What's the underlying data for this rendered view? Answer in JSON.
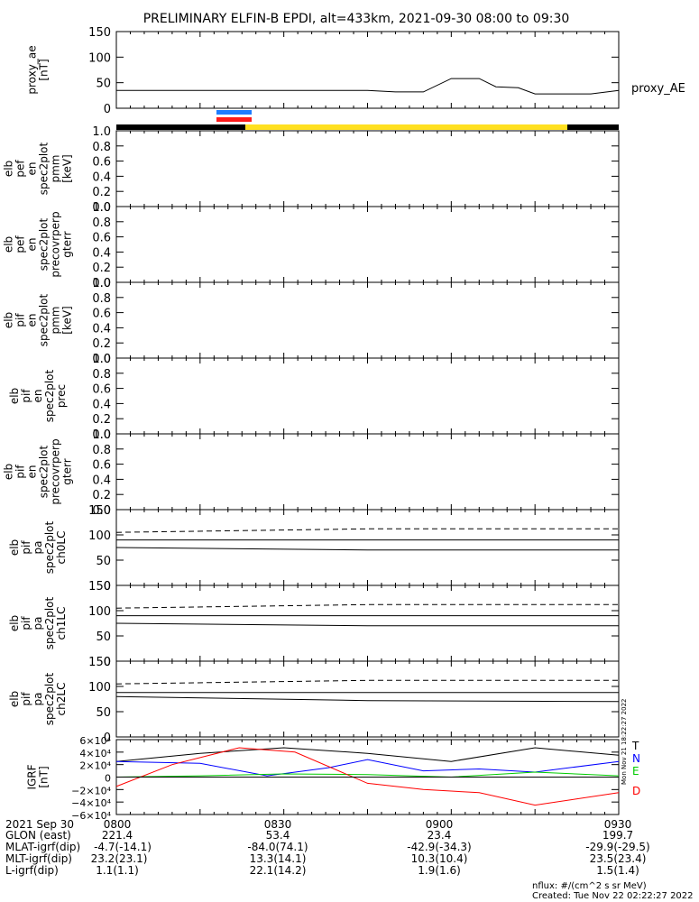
{
  "title": "PRELIMINARY ELFIN-B EPDI, alt=433km, 2021-09-30 08:00 to 09:30",
  "chart_data": [
    {
      "type": "line",
      "ylabel": "proxy_ae [nT]",
      "legend": "proxy_AE",
      "yticks": [
        "150",
        "100",
        "50",
        "0"
      ],
      "ylim": [
        0,
        150
      ],
      "series": [
        {
          "name": "proxy_AE",
          "x_min": [
            0,
            20,
            40,
            45,
            50,
            55,
            60,
            65,
            68,
            72,
            75,
            80,
            85,
            90
          ],
          "values": [
            35,
            35,
            35,
            35,
            32,
            32,
            58,
            58,
            42,
            40,
            28,
            28,
            28,
            35
          ]
        }
      ]
    },
    {
      "type": "line",
      "ylabel": "elb pef en spec2plot pmm [keV]",
      "yticks": [
        "1.0",
        "0.8",
        "0.6",
        "0.4",
        "0.2",
        "0.0"
      ],
      "ylim": [
        0,
        1
      ]
    },
    {
      "type": "line",
      "ylabel": "elb pef en spec2plot precovrperp gterr",
      "yticks": [
        "1.0",
        "0.8",
        "0.6",
        "0.4",
        "0.2",
        "0.0"
      ],
      "ylim": [
        0,
        1
      ]
    },
    {
      "type": "line",
      "ylabel": "elb pif en spec2plot pmm [keV]",
      "yticks": [
        "1.0",
        "0.8",
        "0.6",
        "0.4",
        "0.2",
        "0.0"
      ],
      "ylim": [
        0,
        1
      ]
    },
    {
      "type": "line",
      "ylabel": "elb pif en spec2plot prec",
      "yticks": [
        "1.0",
        "0.8",
        "0.6",
        "0.4",
        "0.2",
        "0.0"
      ],
      "ylim": [
        0,
        1
      ]
    },
    {
      "type": "line",
      "ylabel": "elb pif en spec2plot precovrperp gterr",
      "yticks": [
        "1.0",
        "0.8",
        "0.6",
        "0.4",
        "0.2",
        "0.0"
      ],
      "ylim": [
        0,
        1
      ]
    },
    {
      "type": "line",
      "ylabel": "elb pif pa spec2plot ch0LC",
      "yticks": [
        "150",
        "100",
        "50",
        "0"
      ],
      "ylim": [
        0,
        150
      ],
      "series": [
        {
          "name": "dashed",
          "values": [
            105,
            112,
            112
          ]
        },
        {
          "name": "upper",
          "values": [
            90,
            90,
            90
          ]
        },
        {
          "name": "lower",
          "values": [
            75,
            70,
            70
          ]
        }
      ]
    },
    {
      "type": "line",
      "ylabel": "elb pif pa spec2plot ch1LC",
      "yticks": [
        "150",
        "100",
        "50",
        "0"
      ],
      "ylim": [
        0,
        150
      ],
      "series": [
        {
          "name": "dashed",
          "values": [
            105,
            112,
            112
          ]
        },
        {
          "name": "upper",
          "values": [
            90,
            90,
            90
          ]
        },
        {
          "name": "lower",
          "values": [
            75,
            70,
            70
          ]
        }
      ]
    },
    {
      "type": "line",
      "ylabel": "elb pif pa spec2plot ch2LC",
      "yticks": [
        "150",
        "100",
        "50",
        "0"
      ],
      "ylim": [
        0,
        150
      ],
      "series": [
        {
          "name": "dashed",
          "values": [
            105,
            112,
            112
          ]
        },
        {
          "name": "upper",
          "values": [
            88,
            88,
            88
          ]
        },
        {
          "name": "lower",
          "values": [
            80,
            72,
            70
          ]
        }
      ]
    },
    {
      "type": "line",
      "ylabel": "IGRF [nT]",
      "yticks": [
        "6×10⁴",
        "4×10⁴",
        "2×10⁴",
        "0",
        "−2×10⁴",
        "−4×10⁴",
        "−6×10⁴"
      ],
      "ylim": [
        -60000,
        60000
      ],
      "legend_items": [
        {
          "label": "T",
          "color": "#000000"
        },
        {
          "label": "N",
          "color": "#0000ff"
        },
        {
          "label": "E",
          "color": "#00cc00"
        },
        {
          "label": "D",
          "color": "#ff0000"
        }
      ],
      "series": [
        {
          "name": "T",
          "color": "#000000",
          "x_min": [
            0,
            15,
            30,
            45,
            60,
            75,
            90
          ],
          "values": [
            25000,
            38000,
            47000,
            38000,
            25000,
            47000,
            35000
          ]
        },
        {
          "name": "N",
          "color": "#0000ff",
          "x_min": [
            0,
            15,
            27,
            38,
            45,
            55,
            65,
            75,
            90
          ],
          "values": [
            25000,
            22000,
            2000,
            15000,
            28000,
            10000,
            13000,
            8000,
            25000
          ]
        },
        {
          "name": "E",
          "color": "#00cc00",
          "x_min": [
            0,
            15,
            30,
            45,
            60,
            75,
            90
          ],
          "values": [
            0,
            2000,
            5000,
            4000,
            0,
            8000,
            2000
          ]
        },
        {
          "name": "D",
          "color": "#ff0000",
          "x_min": [
            0,
            10,
            22,
            32,
            45,
            55,
            65,
            75,
            90
          ],
          "values": [
            -15000,
            20000,
            47000,
            40000,
            -10000,
            -20000,
            -25000,
            -45000,
            -25000
          ]
        }
      ]
    }
  ],
  "time_axis": {
    "ticks": [
      "0800",
      "0830",
      "0900",
      "0930"
    ],
    "tick_minutes": [
      0,
      30,
      60,
      90
    ]
  },
  "stamps": [
    "Mon Nov 21 18:22:27 2022",
    "Mon Nov 21 18:22:27 2022"
  ],
  "footer": {
    "date_label": "2021 Sep 30",
    "rows": [
      {
        "label": "GLON (east)",
        "values": [
          "221.4",
          "53.4",
          "23.4",
          "199.7"
        ]
      },
      {
        "label": "MLAT-igrf(dip)",
        "values": [
          "-4.7(-14.1)",
          "-84.0(74.1)",
          "-42.9(-34.3)",
          "-29.9(-29.5)"
        ]
      },
      {
        "label": "MLT-igrf(dip)",
        "values": [
          "23.2(23.1)",
          "13.3(14.1)",
          "10.3(10.4)",
          "23.5(23.4)"
        ]
      },
      {
        "label": "L-igrf(dip)",
        "values": [
          "1.1(1.1)",
          "22.1(14.2)",
          "1.9(1.6)",
          "1.5(1.4)"
        ]
      }
    ],
    "nflux": "nflux: #/(cm^2 s sr MeV)",
    "created": "Created: Tue Nov 22 02:22:27 2022"
  },
  "colors": {
    "blue_bar": "#1e7cff",
    "red_bar": "#ff1a1a",
    "yellow_bar": "#ffe020",
    "black_bar": "#000000"
  }
}
